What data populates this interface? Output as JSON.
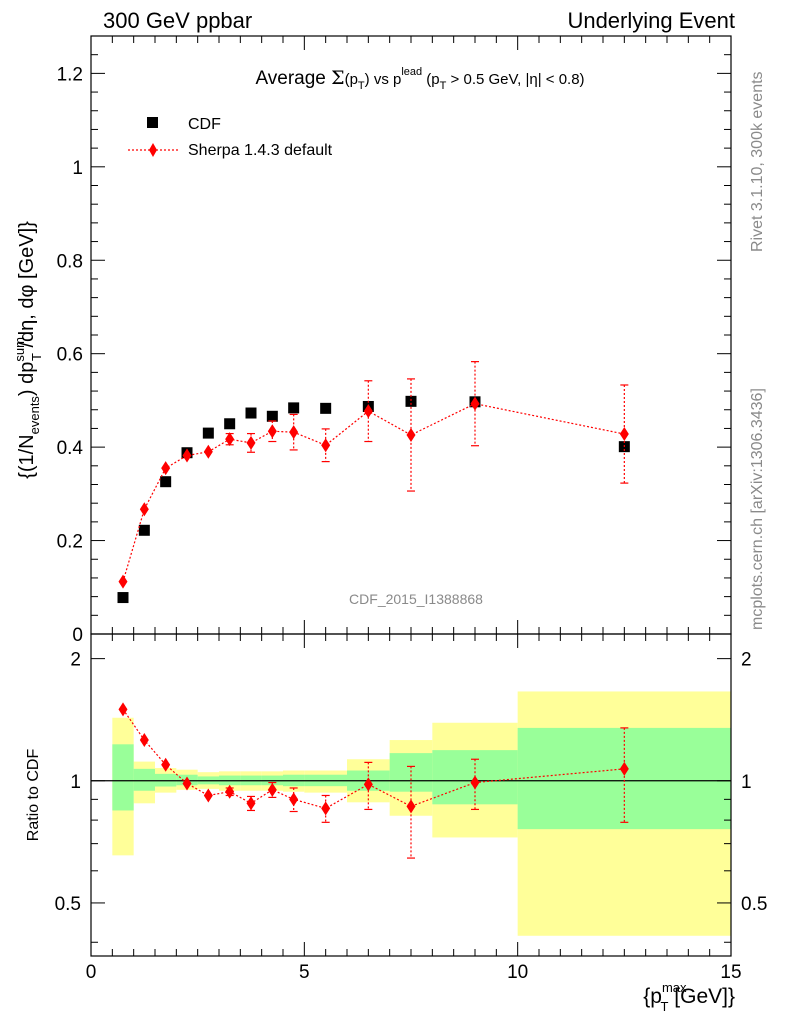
{
  "header": {
    "left": "300 GeV ppbar",
    "right": "Underlying Event"
  },
  "side_text": {
    "top": "Rivet 3.1.10,  300k events",
    "bottom": "mcplots.cern.ch [arXiv:1306.3436]"
  },
  "watermark": "CDF_2015_I1388868",
  "colors": {
    "cdf": "#000000",
    "sherpa": "#ff0000",
    "band_outer": "#ffff99",
    "band_inner": "#99ff99"
  },
  "chart_data": [
    {
      "type": "scatter",
      "panel": "main",
      "title": {
        "prefix": "Average ",
        "sigma": "Σ",
        "pt_open": "(p",
        "sub_T": "T",
        "pt_close": ")",
        "vs": " vs p",
        "sup_lead": "lead",
        "cut_open": " (p",
        "cut_rest": " > 0.5 GeV, |η| < 0.8)"
      },
      "ylabel": {
        "open": "{(1/N",
        "sub_events": "events",
        "mid": ") dp",
        "sup_sum": "sum",
        "sub_T": "T",
        "close": " /dη, dφ [GeV]}"
      },
      "xlim": [
        0,
        15
      ],
      "ylim": [
        0,
        1.28
      ],
      "yticks": [
        "0",
        "0.2",
        "0.4",
        "0.6",
        "0.8",
        "1",
        "1.2"
      ],
      "legend_position": "top-left",
      "series": [
        {
          "name": "CDF",
          "marker": "square",
          "x": [
            0.75,
            1.25,
            1.75,
            2.25,
            2.75,
            3.25,
            3.75,
            4.25,
            4.75,
            5.5,
            6.5,
            7.5,
            9.0,
            12.5
          ],
          "y": [
            0.078,
            0.222,
            0.326,
            0.388,
            0.43,
            0.45,
            0.473,
            0.466,
            0.484,
            0.483,
            0.487,
            0.498,
            0.497,
            0.401
          ]
        },
        {
          "name": "Sherpa 1.4.3 default",
          "marker": "diamond",
          "x": [
            0.75,
            1.25,
            1.75,
            2.25,
            2.75,
            3.25,
            3.75,
            4.25,
            4.75,
            5.5,
            6.5,
            7.5,
            9.0,
            12.5
          ],
          "y": [
            0.112,
            0.267,
            0.355,
            0.382,
            0.39,
            0.417,
            0.409,
            0.434,
            0.432,
            0.404,
            0.477,
            0.426,
            0.493,
            0.428
          ],
          "yerr": [
            0.0,
            0.0,
            0.0,
            0.0,
            0.0,
            0.012,
            0.02,
            0.022,
            0.038,
            0.035,
            0.065,
            0.12,
            0.09,
            0.105
          ]
        }
      ]
    },
    {
      "type": "scatter",
      "panel": "ratio",
      "ylabel": "Ratio to CDF",
      "xlabel": {
        "open": "{p",
        "sup_max": "max",
        "sub_T": "T",
        "close": " [GeV]}"
      },
      "xlim": [
        0,
        15
      ],
      "ylim": [
        0.37,
        2.3
      ],
      "log_y": true,
      "reference_line": 1,
      "xticks": [
        "0",
        "5",
        "10",
        "15"
      ],
      "yticks": [
        "0.5",
        "1",
        "2"
      ],
      "bands": {
        "edges": [
          0.5,
          1.0,
          1.5,
          2.0,
          2.5,
          3.0,
          3.5,
          4.0,
          4.5,
          5.0,
          6.0,
          7.0,
          8.0,
          10.0,
          15.0
        ],
        "inner_low": [
          0.845,
          0.945,
          0.968,
          0.975,
          0.98,
          0.975,
          0.975,
          0.975,
          0.97,
          0.97,
          0.945,
          0.94,
          0.875,
          0.76
        ],
        "inner_high": [
          1.23,
          1.07,
          1.04,
          1.035,
          1.025,
          1.03,
          1.03,
          1.03,
          1.035,
          1.035,
          1.06,
          1.17,
          1.19,
          1.35
        ],
        "outer_low": [
          0.655,
          0.88,
          0.935,
          0.95,
          0.955,
          0.945,
          0.945,
          0.945,
          0.94,
          0.935,
          0.885,
          0.82,
          0.725,
          0.415
        ],
        "outer_high": [
          1.43,
          1.115,
          1.075,
          1.065,
          1.05,
          1.055,
          1.055,
          1.055,
          1.06,
          1.06,
          1.13,
          1.26,
          1.39,
          1.66
        ]
      },
      "series": [
        {
          "name": "Sherpa 1.4.3 default",
          "x": [
            0.75,
            1.25,
            1.75,
            2.25,
            2.75,
            3.25,
            3.75,
            4.25,
            4.75,
            5.5,
            6.5,
            7.5,
            9.0,
            12.5
          ],
          "y": [
            1.5,
            1.26,
            1.095,
            0.985,
            0.92,
            0.94,
            0.88,
            0.95,
            0.9,
            0.855,
            0.98,
            0.865,
            0.99,
            1.07
          ],
          "yerr": [
            0.0,
            0.0,
            0.0,
            0.0,
            0.0,
            0.02,
            0.035,
            0.04,
            0.06,
            0.065,
            0.13,
            0.22,
            0.14,
            0.28
          ]
        }
      ]
    }
  ]
}
